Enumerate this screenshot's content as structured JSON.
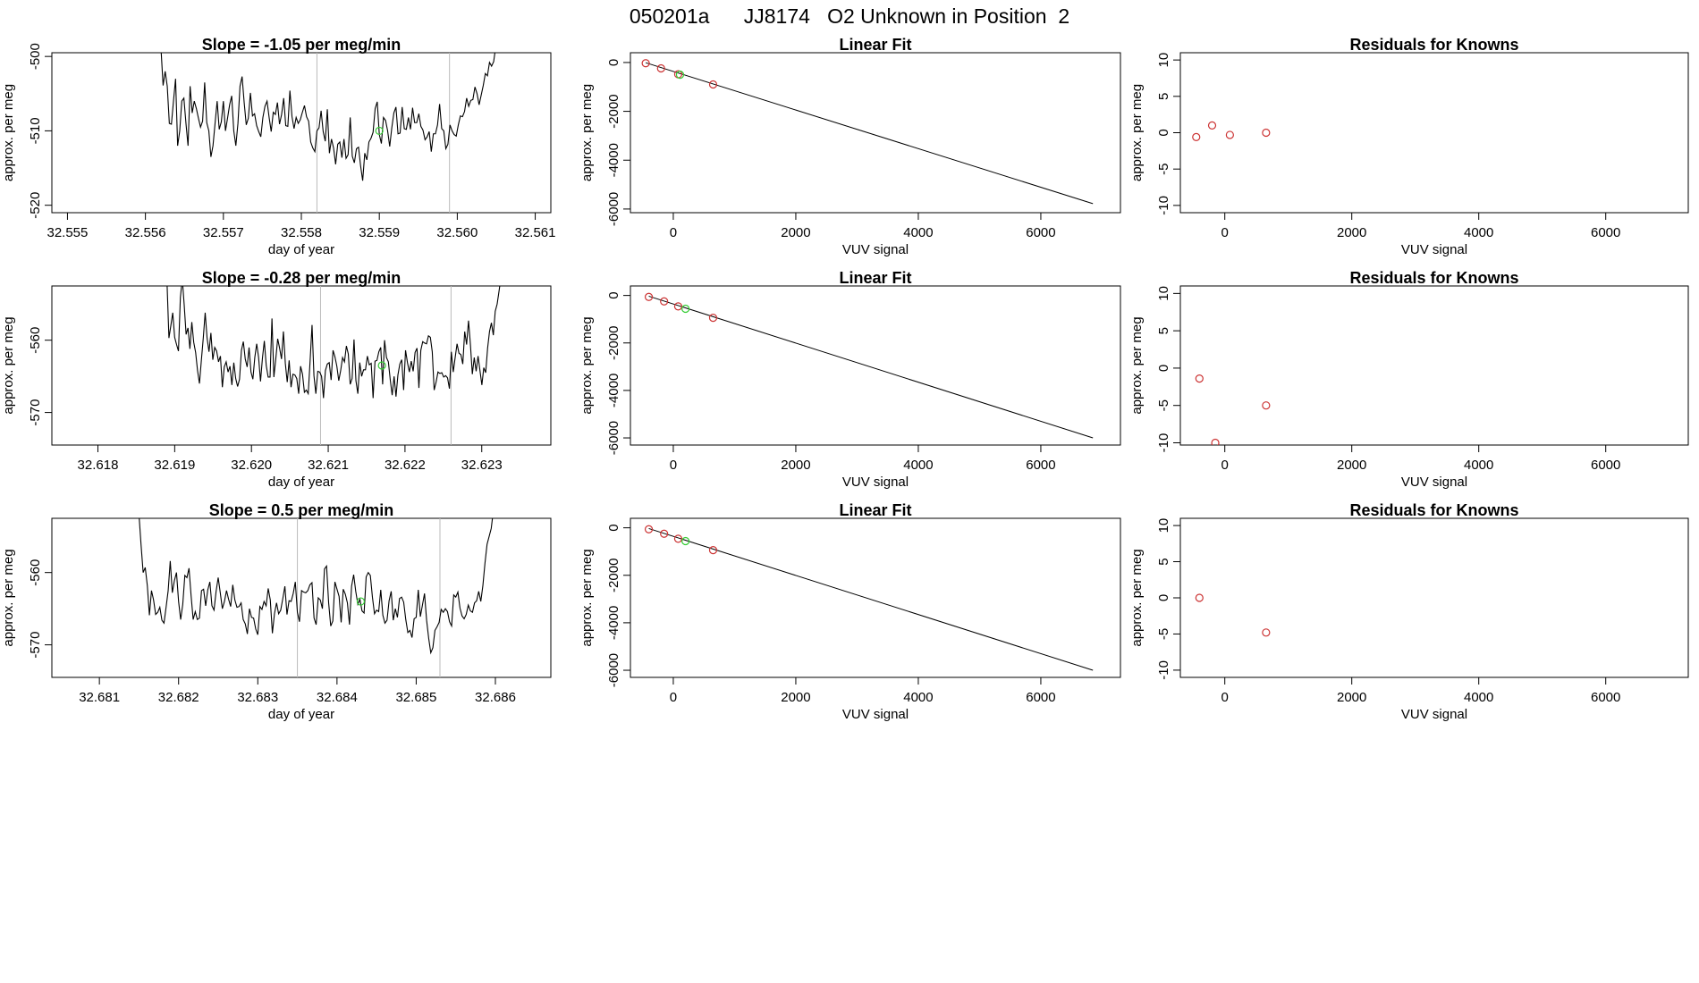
{
  "figure_title": "050201a      JJ8174   O2 Unknown in Position  2",
  "colors": {
    "line": "#000000",
    "known": "#cc3333",
    "unknown": "#33cc33",
    "vline": "#bbbbbb",
    "box": "#000000"
  },
  "chart_data": [
    {
      "type": "line",
      "row": 0,
      "title": "Slope =  -1.05  per meg/min",
      "xlabel": "day of year",
      "ylabel": "approx. per meg",
      "xlim": [
        32.5548,
        32.5612
      ],
      "ylim": [
        -521,
        -499.5
      ],
      "xticks": [
        32.555,
        32.556,
        32.557,
        32.558,
        32.559,
        32.56,
        32.561
      ],
      "xtick_labels": [
        "32.555",
        "32.556",
        "32.557",
        "32.558",
        "32.559",
        "32.560",
        "32.561"
      ],
      "yticks": [
        -500,
        -510,
        -520
      ],
      "ytick_labels": [
        "-500",
        "-510",
        "-520"
      ],
      "vlines": [
        32.5582,
        32.5599
      ],
      "x_start": 32.5562,
      "x_end": 32.5606,
      "start_y": -499,
      "end_y": -499,
      "y": [
        -503.9,
        -502.0,
        -504.0,
        -509.0,
        -509.1,
        -506.0,
        -503.0,
        -512.0,
        -510.0,
        -506.0,
        -505.6,
        -509.0,
        -512.0,
        -504.0,
        -507.6,
        -506.0,
        -507.0,
        -508.3,
        -509.5,
        -508.7,
        -503.5,
        -508.9,
        -510.0,
        -513.5,
        -512.0,
        -509.0,
        -506.0,
        -509.8,
        -508.8,
        -506.0,
        -510.0,
        -508.3,
        -506.5,
        -505.3,
        -510.0,
        -512.0,
        -509.0,
        -504.0,
        -502.7,
        -506.2,
        -509.2,
        -508.3,
        -504.9,
        -508.0,
        -507.7,
        -509.3,
        -510.1,
        -510.8,
        -508.2,
        -506.7,
        -506.0,
        -508.2,
        -510.1,
        -507.5,
        -507.8,
        -506.2,
        -509.1,
        -507.8,
        -505.6,
        -509.3,
        -509.4,
        -504.6,
        -508.1,
        -509.7,
        -508.2,
        -509.0,
        -508.5,
        -507.5,
        -506.6,
        -508.1,
        -508.7,
        -511.5,
        -512.3,
        -512.8,
        -510.0,
        -509.6,
        -507.3,
        -510.1,
        -511.4,
        -507.1,
        -513.0,
        -511.1,
        -512.3,
        -514.5,
        -511.8,
        -511.5,
        -513.6,
        -511.1,
        -513.7,
        -513.2,
        -508.2,
        -513.4,
        -514.3,
        -512.4,
        -512.2,
        -514.7,
        -516.7,
        -513.0,
        -513.9,
        -511.5,
        -511.0,
        -510.2,
        -507.0,
        -506.1,
        -510.5,
        -511.7,
        -508.2,
        -508.6,
        -510.0,
        -512.1,
        -509.6,
        -507.6,
        -506.8,
        -510.4,
        -510.3,
        -506.8,
        -509.7,
        -509.8,
        -508.2,
        -509.8,
        -506.9,
        -508.9,
        -508.9,
        -507.7,
        -509.4,
        -509.9,
        -511.2,
        -510.8,
        -510.1,
        -512.8,
        -510.4,
        -510.4,
        -509.2,
        -506.4,
        -509.7,
        -510.0,
        -512.4,
        -511.8,
        -509.2,
        -510.0,
        -510.5,
        -510.7,
        -509.2,
        -508.0,
        -508.1,
        -507.4,
        -505.6,
        -506.7,
        -505.9,
        -505.8,
        -504.1,
        -505.0,
        -506.5,
        -505.2,
        -503.9,
        -502.3,
        -502.6,
        -500.8,
        -501.3,
        -500.7,
        -498.7,
        -498.6,
        -498.5,
        -498.5
      ],
      "unknown_points": [
        {
          "x": 32.559,
          "y": -510
        }
      ]
    },
    {
      "type": "scatter",
      "row": 0,
      "title": "Linear Fit",
      "xlabel": "VUV signal",
      "ylabel": "approx. per meg",
      "xlim": [
        -700,
        7300
      ],
      "ylim": [
        -6150,
        400
      ],
      "xticks": [
        0,
        2000,
        4000,
        6000
      ],
      "xtick_labels": [
        "0",
        "2000",
        "4000",
        "6000"
      ],
      "yticks": [
        0,
        -2000,
        -4000,
        -6000
      ],
      "ytick_labels": [
        "0",
        "-2000",
        "-4000",
        "-6000"
      ],
      "fit_line": [
        {
          "x": -450,
          "y": -10
        },
        {
          "x": 6850,
          "y": -5780
        }
      ],
      "known_points": [
        {
          "x": -450,
          "y": -30
        },
        {
          "x": -200,
          "y": -240
        },
        {
          "x": 80,
          "y": -480
        },
        {
          "x": 650,
          "y": -900
        }
      ],
      "unknown_points": [
        {
          "x": 110,
          "y": -500
        }
      ]
    },
    {
      "type": "scatter",
      "row": 0,
      "title": "Residuals for Knowns",
      "xlabel": "VUV signal",
      "ylabel": "approx. per meg",
      "xlim": [
        -700,
        7300
      ],
      "ylim": [
        -11,
        11
      ],
      "xticks": [
        0,
        2000,
        4000,
        6000
      ],
      "xtick_labels": [
        "0",
        "2000",
        "4000",
        "6000"
      ],
      "yticks": [
        10,
        5,
        0,
        -5,
        -10
      ],
      "ytick_labels": [
        "10",
        "5",
        "0",
        "-5",
        "-10"
      ],
      "known_points": [
        {
          "x": -450,
          "y": -0.6
        },
        {
          "x": -200,
          "y": 1.0
        },
        {
          "x": 80,
          "y": -0.3
        },
        {
          "x": 650,
          "y": 0
        }
      ]
    },
    {
      "type": "line",
      "row": 1,
      "title": "Slope =  -0.28  per meg/min",
      "xlabel": "day of year",
      "ylabel": "approx. per meg",
      "xlim": [
        32.6174,
        32.6239
      ],
      "ylim": [
        -574.5,
        -552.5
      ],
      "xticks": [
        32.618,
        32.619,
        32.62,
        32.621,
        32.622,
        32.623
      ],
      "xtick_labels": [
        "32.618",
        "32.619",
        "32.620",
        "32.621",
        "32.622",
        "32.623"
      ],
      "yticks": [
        -560,
        -570
      ],
      "ytick_labels": [
        "-560",
        "-570"
      ],
      "vlines": [
        32.6209,
        32.6226
      ],
      "x_start": 32.6189,
      "x_end": 32.6233,
      "start_y": -552,
      "end_y": -552,
      "y": [
        -559.7,
        -558.0,
        -556.2,
        -559.6,
        -560.6,
        -561.5,
        -554.1,
        -551.5,
        -555.1,
        -559.2,
        -558.3,
        -561.2,
        -557.5,
        -560.3,
        -561.7,
        -564.2,
        -566.0,
        -562.8,
        -559.7,
        -556.2,
        -559.7,
        -561.6,
        -559.0,
        -562.7,
        -561.0,
        -561.5,
        -563.0,
        -562.2,
        -566.5,
        -563.7,
        -563.0,
        -564.4,
        -563.6,
        -566.2,
        -563.1,
        -565.3,
        -566.4,
        -565.4,
        -561.4,
        -560.2,
        -562.6,
        -563.7,
        -561.0,
        -564.4,
        -565.4,
        -562.4,
        -560.5,
        -562.4,
        -565.7,
        -562.5,
        -560.1,
        -563.5,
        -565.1,
        -565.1,
        -557.0,
        -565.1,
        -562.6,
        -559.8,
        -561.1,
        -562.6,
        -558.8,
        -563.2,
        -565.8,
        -562.8,
        -566.5,
        -564.7,
        -564.8,
        -565.3,
        -567.4,
        -563.6,
        -564.7,
        -567.2,
        -566.9,
        -567.4,
        -562.8,
        -557.9,
        -564.9,
        -567.4,
        -564.3,
        -564.4,
        -565.0,
        -568.0,
        -564.2,
        -563.3,
        -563.1,
        -565.5,
        -561.4,
        -562.3,
        -563.6,
        -565.6,
        -564.2,
        -562.4,
        -563.0,
        -560.8,
        -561.9,
        -566.1,
        -565.3,
        -559.9,
        -565.6,
        -567.4,
        -563.1,
        -565.0,
        -564.1,
        -564.1,
        -562.2,
        -563.4,
        -563.2,
        -568.0,
        -562.9,
        -562.8,
        -561.6,
        -561.0,
        -566.1,
        -560.0,
        -562.4,
        -563.0,
        -565.5,
        -567.6,
        -565.0,
        -567.8,
        -564.8,
        -563.3,
        -562.7,
        -566.9,
        -561.4,
        -563.1,
        -564.4,
        -562.9,
        -564.3,
        -561.7,
        -561.1,
        -566.6,
        -561.4,
        -560.2,
        -560.4,
        -560.5,
        -559.4,
        -559.6,
        -561.6,
        -566.9,
        -565.8,
        -564.4,
        -564.6,
        -564.5,
        -565.1,
        -564.9,
        -565.2,
        -566.7,
        -561.6,
        -564.4,
        -562.4,
        -560.5,
        -561.8,
        -562.0,
        -563.3,
        -558.8,
        -560.6,
        -557.3,
        -560.6,
        -564.7,
        -562.4,
        -564.3,
        -562.2,
        -564.2,
        -566.2,
        -563.8,
        -564.5,
        -561.1,
        -558.8,
        -557.6,
        -559.3,
        -556.0,
        -555.0,
        -553.2,
        -551.3,
        -552.4
      ],
      "unknown_points": [
        {
          "x": 32.6217,
          "y": -563.5
        }
      ]
    },
    {
      "type": "scatter",
      "row": 1,
      "title": "Linear Fit",
      "xlabel": "VUV signal",
      "ylabel": "approx. per meg",
      "xlim": [
        -700,
        7300
      ],
      "ylim": [
        -6300,
        400
      ],
      "xticks": [
        0,
        2000,
        4000,
        6000
      ],
      "xtick_labels": [
        "0",
        "2000",
        "4000",
        "6000"
      ],
      "yticks": [
        0,
        -2000,
        -4000,
        -6000
      ],
      "ytick_labels": [
        "0",
        "-2000",
        "-4000",
        "-6000"
      ],
      "fit_line": [
        {
          "x": -400,
          "y": -30
        },
        {
          "x": 6850,
          "y": -6000
        }
      ],
      "known_points": [
        {
          "x": -400,
          "y": -60
        },
        {
          "x": -150,
          "y": -250
        },
        {
          "x": 80,
          "y": -460
        },
        {
          "x": 650,
          "y": -940
        }
      ],
      "unknown_points": [
        {
          "x": 200,
          "y": -560
        }
      ]
    },
    {
      "type": "scatter",
      "row": 1,
      "title": "Residuals for Knowns",
      "xlabel": "VUV signal",
      "ylabel": "approx. per meg",
      "xlim": [
        -700,
        7300
      ],
      "ylim": [
        -10.3,
        11
      ],
      "xticks": [
        0,
        2000,
        4000,
        6000
      ],
      "xtick_labels": [
        "0",
        "2000",
        "4000",
        "6000"
      ],
      "yticks": [
        10,
        5,
        0,
        -5,
        -10
      ],
      "ytick_labels": [
        "10",
        "5",
        "0",
        "-5",
        "-10"
      ],
      "known_points": [
        {
          "x": -400,
          "y": -1.4
        },
        {
          "x": -150,
          "y": -10
        },
        {
          "x": 650,
          "y": -5
        }
      ]
    },
    {
      "type": "line",
      "row": 2,
      "title": "Slope =  0.5  per meg/min",
      "xlabel": "day of year",
      "ylabel": "approx. per meg",
      "xlim": [
        32.6804,
        32.6867
      ],
      "ylim": [
        -574.5,
        -552.5
      ],
      "xticks": [
        32.681,
        32.682,
        32.683,
        32.684,
        32.685,
        32.686
      ],
      "xtick_labels": [
        "32.681",
        "32.682",
        "32.683",
        "32.684",
        "32.685",
        "32.686"
      ],
      "yticks": [
        -560,
        -570
      ],
      "ytick_labels": [
        "-560",
        "-570"
      ],
      "vlines": [
        32.6835,
        32.6853
      ],
      "x_start": 32.6815,
      "x_end": 32.686,
      "start_y": -552,
      "end_y": -552,
      "y": [
        -556.2,
        -560.0,
        -559.3,
        -561.8,
        -565.9,
        -562.5,
        -563.8,
        -565.8,
        -565.5,
        -564.8,
        -566.6,
        -567.0,
        -564.8,
        -562.5,
        -558.4,
        -562.8,
        -561.1,
        -560.0,
        -564.0,
        -566.5,
        -564.4,
        -560.4,
        -560.7,
        -559.4,
        -563.2,
        -566.5,
        -565.4,
        -566.5,
        -566.3,
        -562.5,
        -562.3,
        -564.6,
        -562.4,
        -561.3,
        -564.6,
        -565.2,
        -562.6,
        -560.7,
        -562.8,
        -565.0,
        -564.0,
        -562.5,
        -563.7,
        -564.7,
        -561.7,
        -563.8,
        -564.8,
        -564.7,
        -564.2,
        -566.5,
        -567.1,
        -568.5,
        -565.0,
        -566.2,
        -566.3,
        -567.8,
        -568.6,
        -564.7,
        -565.1,
        -564.0,
        -564.6,
        -562.2,
        -563.8,
        -568.4,
        -565.7,
        -564.2,
        -565.7,
        -565.2,
        -563.6,
        -561.9,
        -565.8,
        -563.9,
        -564.0,
        -562.9,
        -561.3,
        -565.5,
        -566.8,
        -562.5,
        -562.7,
        -562.8,
        -562.5,
        -561.7,
        -561.4,
        -566.3,
        -567.2,
        -563.5,
        -563.8,
        -565.0,
        -559.5,
        -559.1,
        -564.2,
        -567.4,
        -566.7,
        -561.3,
        -562.3,
        -563.3,
        -566.9,
        -562.3,
        -563.0,
        -564.2,
        -567.2,
        -561.9,
        -560.3,
        -562.6,
        -564.4,
        -563.7,
        -565.3,
        -565.6,
        -560.6,
        -560.0,
        -560.4,
        -563.4,
        -565.7,
        -565.2,
        -565.4,
        -562.4,
        -565.9,
        -567.0,
        -566.6,
        -563.9,
        -562.6,
        -566.6,
        -565.0,
        -566.2,
        -563.6,
        -563.4,
        -564.1,
        -566.5,
        -568.3,
        -568.0,
        -569.0,
        -566.4,
        -566.2,
        -562.4,
        -566.1,
        -564.5,
        -562.9,
        -566.6,
        -569.1,
        -571.1,
        -570.4,
        -568.0,
        -567.5,
        -566.9,
        -565.1,
        -565.5,
        -565.0,
        -565.4,
        -566.8,
        -567.4,
        -563.1,
        -563.4,
        -562.7,
        -564.9,
        -566.0,
        -566.4,
        -565.8,
        -564.5,
        -565.3,
        -565.5,
        -564.2,
        -563.9,
        -562.6,
        -564.0,
        -561.8,
        -558.7,
        -556.1,
        -555.0,
        -553.9,
        -551.5
      ],
      "unknown_points": [
        {
          "x": 32.6843,
          "y": -564
        }
      ]
    },
    {
      "type": "scatter",
      "row": 2,
      "title": "Linear Fit",
      "xlabel": "VUV signal",
      "ylabel": "approx. per meg",
      "xlim": [
        -700,
        7300
      ],
      "ylim": [
        -6300,
        400
      ],
      "xticks": [
        0,
        2000,
        4000,
        6000
      ],
      "xtick_labels": [
        "0",
        "2000",
        "4000",
        "6000"
      ],
      "yticks": [
        0,
        -2000,
        -4000,
        -6000
      ],
      "ytick_labels": [
        "0",
        "-2000",
        "-4000",
        "-6000"
      ],
      "fit_line": [
        {
          "x": -400,
          "y": -30
        },
        {
          "x": 6850,
          "y": -6000
        }
      ],
      "known_points": [
        {
          "x": -400,
          "y": -60
        },
        {
          "x": -150,
          "y": -250
        },
        {
          "x": 80,
          "y": -460
        },
        {
          "x": 650,
          "y": -940
        }
      ],
      "unknown_points": [
        {
          "x": 200,
          "y": -560
        }
      ]
    },
    {
      "type": "scatter",
      "row": 2,
      "title": "Residuals for Knowns",
      "xlabel": "VUV signal",
      "ylabel": "approx. per meg",
      "xlim": [
        -700,
        7300
      ],
      "ylim": [
        -11,
        11
      ],
      "xticks": [
        0,
        2000,
        4000,
        6000
      ],
      "xtick_labels": [
        "0",
        "2000",
        "4000",
        "6000"
      ],
      "yticks": [
        10,
        5,
        0,
        -5,
        -10
      ],
      "ytick_labels": [
        "10",
        "5",
        "0",
        "-5",
        "-10"
      ],
      "known_points": [
        {
          "x": -400,
          "y": 0
        },
        {
          "x": 650,
          "y": -4.8
        }
      ]
    }
  ]
}
